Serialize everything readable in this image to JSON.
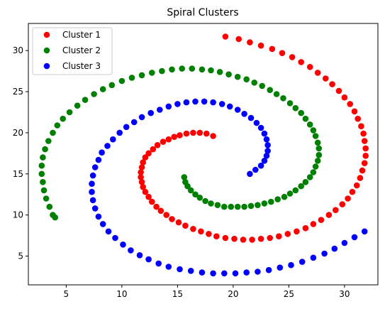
{
  "chart_data": {
    "type": "scatter",
    "title": "Spiral Clusters",
    "xlabel": "",
    "ylabel": "",
    "xlim": [
      1.6,
      33.0
    ],
    "ylim": [
      1.5,
      33.3
    ],
    "xticks": [
      5,
      10,
      15,
      20,
      25,
      30
    ],
    "yticks": [
      5,
      10,
      15,
      20,
      25,
      30
    ],
    "grid": false,
    "legend_position": "top-left",
    "series": [
      {
        "name": "Cluster 1",
        "color": "#ff0000",
        "points": [
          [
            18.2,
            19.6
          ],
          [
            17.6,
            19.9
          ],
          [
            17.0,
            20.0
          ],
          [
            16.4,
            20.0
          ],
          [
            15.8,
            19.9
          ],
          [
            15.2,
            19.7
          ],
          [
            14.7,
            19.5
          ],
          [
            14.2,
            19.2
          ],
          [
            13.7,
            18.9
          ],
          [
            13.2,
            18.5
          ],
          [
            12.8,
            18.0
          ],
          [
            12.4,
            17.5
          ],
          [
            12.1,
            17.0
          ],
          [
            11.9,
            16.4
          ],
          [
            11.8,
            15.8
          ],
          [
            11.7,
            15.2
          ],
          [
            11.7,
            14.6
          ],
          [
            11.8,
            14.0
          ],
          [
            11.9,
            13.4
          ],
          [
            12.1,
            12.8
          ],
          [
            12.4,
            12.2
          ],
          [
            12.7,
            11.6
          ],
          [
            13.1,
            11.0
          ],
          [
            13.5,
            10.5
          ],
          [
            14.0,
            10.0
          ],
          [
            14.5,
            9.5
          ],
          [
            15.1,
            9.1
          ],
          [
            15.7,
            8.7
          ],
          [
            16.4,
            8.3
          ],
          [
            17.1,
            8.0
          ],
          [
            17.8,
            7.7
          ],
          [
            18.5,
            7.4
          ],
          [
            19.3,
            7.2
          ],
          [
            20.1,
            7.1
          ],
          [
            20.9,
            7.0
          ],
          [
            21.7,
            7.0
          ],
          [
            22.5,
            7.1
          ],
          [
            23.3,
            7.2
          ],
          [
            24.1,
            7.4
          ],
          [
            24.9,
            7.7
          ],
          [
            25.7,
            8.0
          ],
          [
            26.5,
            8.4
          ],
          [
            27.2,
            8.9
          ],
          [
            27.9,
            9.4
          ],
          [
            28.6,
            10.0
          ],
          [
            29.2,
            10.6
          ],
          [
            29.8,
            11.3
          ],
          [
            30.3,
            12.0
          ],
          [
            30.7,
            12.8
          ],
          [
            31.1,
            13.6
          ],
          [
            31.4,
            14.5
          ],
          [
            31.6,
            15.4
          ],
          [
            31.8,
            16.3
          ],
          [
            31.9,
            17.2
          ],
          [
            31.9,
            18.1
          ],
          [
            31.8,
            19.0
          ],
          [
            31.7,
            19.9
          ],
          [
            31.5,
            20.8
          ],
          [
            31.2,
            21.7
          ],
          [
            30.9,
            22.6
          ],
          [
            30.5,
            23.5
          ],
          [
            30.0,
            24.3
          ],
          [
            29.5,
            25.1
          ],
          [
            28.9,
            25.9
          ],
          [
            28.3,
            26.6
          ],
          [
            27.6,
            27.3
          ],
          [
            26.9,
            28.0
          ],
          [
            26.1,
            28.6
          ],
          [
            25.3,
            29.2
          ],
          [
            24.4,
            29.7
          ],
          [
            23.5,
            30.2
          ],
          [
            22.5,
            30.6
          ],
          [
            21.5,
            31.0
          ],
          [
            20.5,
            31.4
          ],
          [
            19.3,
            31.7
          ]
        ]
      },
      {
        "name": "Cluster 2",
        "color": "#008000",
        "points": [
          [
            15.6,
            14.6
          ],
          [
            15.7,
            14.0
          ],
          [
            15.9,
            13.5
          ],
          [
            16.2,
            13.0
          ],
          [
            16.6,
            12.5
          ],
          [
            17.0,
            12.1
          ],
          [
            17.5,
            11.7
          ],
          [
            18.0,
            11.4
          ],
          [
            18.6,
            11.2
          ],
          [
            19.2,
            11.0
          ],
          [
            19.8,
            11.0
          ],
          [
            20.4,
            11.0
          ],
          [
            21.0,
            11.0
          ],
          [
            21.6,
            11.1
          ],
          [
            22.2,
            11.2
          ],
          [
            22.8,
            11.4
          ],
          [
            23.4,
            11.6
          ],
          [
            24.0,
            11.9
          ],
          [
            24.6,
            12.2
          ],
          [
            25.1,
            12.6
          ],
          [
            25.6,
            13.0
          ],
          [
            26.1,
            13.5
          ],
          [
            26.5,
            14.0
          ],
          [
            26.9,
            14.6
          ],
          [
            27.2,
            15.2
          ],
          [
            27.4,
            15.9
          ],
          [
            27.6,
            16.6
          ],
          [
            27.7,
            17.3
          ],
          [
            27.7,
            18.1
          ],
          [
            27.6,
            18.8
          ],
          [
            27.4,
            19.6
          ],
          [
            27.2,
            20.3
          ],
          [
            26.9,
            21.0
          ],
          [
            26.5,
            21.7
          ],
          [
            26.1,
            22.4
          ],
          [
            25.6,
            23.0
          ],
          [
            25.1,
            23.6
          ],
          [
            24.5,
            24.2
          ],
          [
            23.9,
            24.7
          ],
          [
            23.3,
            25.2
          ],
          [
            22.6,
            25.7
          ],
          [
            21.9,
            26.1
          ],
          [
            21.2,
            26.5
          ],
          [
            20.4,
            26.8
          ],
          [
            19.6,
            27.1
          ],
          [
            18.8,
            27.4
          ],
          [
            18.0,
            27.6
          ],
          [
            17.2,
            27.7
          ],
          [
            16.3,
            27.8
          ],
          [
            15.4,
            27.8
          ],
          [
            14.5,
            27.7
          ],
          [
            13.6,
            27.5
          ],
          [
            12.7,
            27.3
          ],
          [
            11.8,
            27.0
          ],
          [
            10.9,
            26.7
          ],
          [
            10.0,
            26.3
          ],
          [
            9.1,
            25.8
          ],
          [
            8.3,
            25.3
          ],
          [
            7.5,
            24.7
          ],
          [
            6.7,
            24.0
          ],
          [
            6.0,
            23.3
          ],
          [
            5.3,
            22.5
          ],
          [
            4.7,
            21.7
          ],
          [
            4.2,
            20.9
          ],
          [
            3.8,
            20.0
          ],
          [
            3.4,
            19.0
          ],
          [
            3.1,
            18.0
          ],
          [
            2.9,
            17.0
          ],
          [
            2.8,
            16.0
          ],
          [
            2.8,
            15.0
          ],
          [
            2.9,
            14.0
          ],
          [
            3.0,
            13.0
          ],
          [
            3.2,
            12.0
          ],
          [
            3.5,
            11.0
          ],
          [
            3.8,
            10.0
          ],
          [
            4.0,
            9.7
          ]
        ]
      },
      {
        "name": "Cluster 3",
        "color": "#0000ff",
        "points": [
          [
            21.5,
            15.0
          ],
          [
            22.0,
            15.5
          ],
          [
            22.5,
            16.0
          ],
          [
            22.8,
            16.6
          ],
          [
            23.0,
            17.2
          ],
          [
            23.1,
            17.8
          ],
          [
            23.1,
            18.5
          ],
          [
            23.0,
            19.2
          ],
          [
            22.8,
            19.9
          ],
          [
            22.5,
            20.6
          ],
          [
            22.1,
            21.2
          ],
          [
            21.6,
            21.8
          ],
          [
            21.0,
            22.3
          ],
          [
            20.4,
            22.8
          ],
          [
            19.7,
            23.2
          ],
          [
            19.0,
            23.5
          ],
          [
            18.2,
            23.7
          ],
          [
            17.4,
            23.8
          ],
          [
            16.6,
            23.8
          ],
          [
            15.8,
            23.7
          ],
          [
            15.0,
            23.5
          ],
          [
            14.2,
            23.2
          ],
          [
            13.4,
            22.8
          ],
          [
            12.6,
            22.4
          ],
          [
            11.8,
            21.9
          ],
          [
            11.1,
            21.3
          ],
          [
            10.4,
            20.7
          ],
          [
            9.8,
            20.0
          ],
          [
            9.2,
            19.2
          ],
          [
            8.7,
            18.4
          ],
          [
            8.2,
            17.6
          ],
          [
            7.9,
            16.7
          ],
          [
            7.6,
            15.8
          ],
          [
            7.4,
            14.8
          ],
          [
            7.3,
            13.8
          ],
          [
            7.3,
            12.8
          ],
          [
            7.4,
            11.8
          ],
          [
            7.6,
            10.8
          ],
          [
            7.9,
            9.8
          ],
          [
            8.3,
            8.9
          ],
          [
            8.8,
            8.0
          ],
          [
            9.4,
            7.2
          ],
          [
            10.1,
            6.4
          ],
          [
            10.8,
            5.7
          ],
          [
            11.6,
            5.1
          ],
          [
            12.4,
            4.6
          ],
          [
            13.3,
            4.1
          ],
          [
            14.2,
            3.7
          ],
          [
            15.2,
            3.4
          ],
          [
            16.2,
            3.2
          ],
          [
            17.2,
            3.0
          ],
          [
            18.2,
            2.9
          ],
          [
            19.2,
            2.9
          ],
          [
            20.2,
            2.9
          ],
          [
            21.2,
            3.0
          ],
          [
            22.2,
            3.1
          ],
          [
            23.2,
            3.3
          ],
          [
            24.2,
            3.6
          ],
          [
            25.2,
            3.9
          ],
          [
            26.2,
            4.3
          ],
          [
            27.2,
            4.8
          ],
          [
            28.2,
            5.3
          ],
          [
            29.1,
            5.9
          ],
          [
            30.0,
            6.6
          ],
          [
            30.9,
            7.3
          ],
          [
            31.8,
            8.0
          ]
        ]
      }
    ]
  }
}
